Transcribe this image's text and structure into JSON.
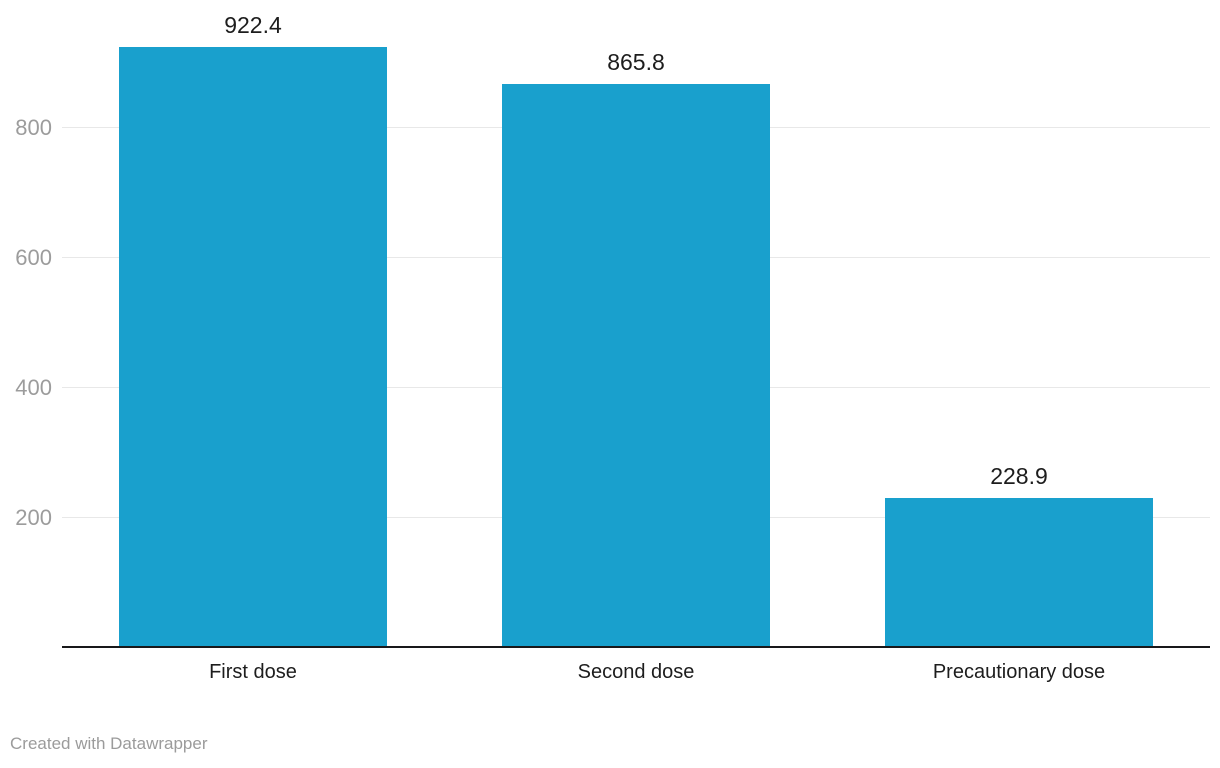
{
  "chart_data": {
    "type": "bar",
    "categories": [
      "First dose",
      "Second dose",
      "Precautionary dose"
    ],
    "values": [
      922.4,
      865.8,
      228.9
    ],
    "value_labels": [
      "922.4",
      "865.8",
      "228.9"
    ],
    "y_ticks": [
      200,
      400,
      600,
      800
    ],
    "y_tick_labels": [
      "200",
      "400",
      "600",
      "800"
    ],
    "ylim": [
      0,
      950
    ],
    "grid": true,
    "legend": "none",
    "bar_color": "#19a0cd",
    "gridline_color": "#e8e8e8",
    "axis_line_color": "#18181a",
    "tick_label_color": "#9c9c9c",
    "label_color": "#1d1d1d"
  },
  "footer": {
    "credit": "Created with Datawrapper"
  }
}
